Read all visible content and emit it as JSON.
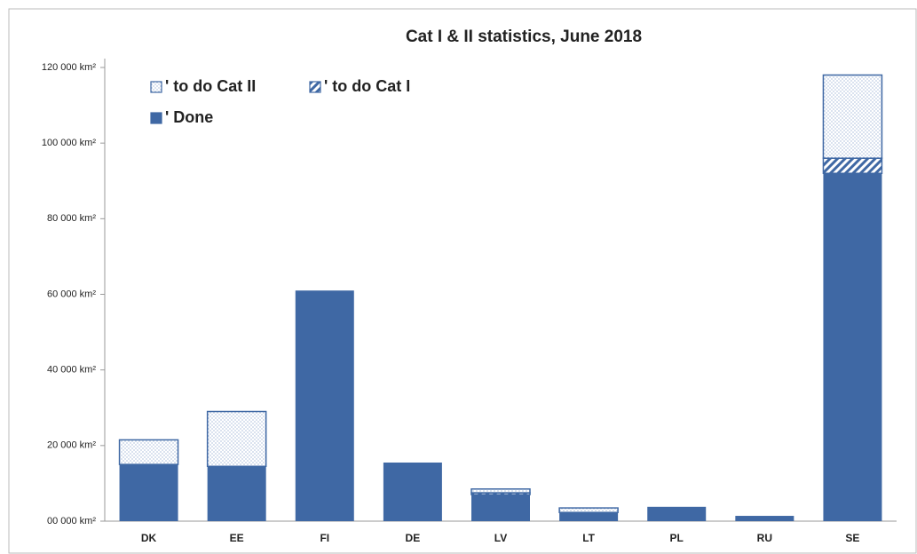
{
  "chart_data": {
    "type": "stacked_bar",
    "title": "Cat I & II statistics, June 2018",
    "categories": [
      "DK",
      "EE",
      "FI",
      "DE",
      "LV",
      "LT",
      "PL",
      "RU",
      "SE"
    ],
    "series": [
      {
        "name": "' Done",
        "color": "#3f68a4",
        "pattern": "solid",
        "values": [
          15000,
          14500,
          61000,
          15500,
          7000,
          2300,
          3800,
          1400,
          92000
        ]
      },
      {
        "name": "' to do Cat I",
        "color": "#3f68a4",
        "pattern": "hatch",
        "values": [
          0,
          0,
          0,
          0,
          500,
          0,
          0,
          0,
          4000
        ]
      },
      {
        "name": "' to do Cat II",
        "color": "#3f68a4",
        "pattern": "dots",
        "values": [
          6500,
          14500,
          0,
          0,
          1000,
          1200,
          0,
          0,
          22000
        ]
      }
    ],
    "ylim": [
      0,
      120000
    ],
    "yticks": [
      {
        "value": 0,
        "label": "00 000  km²"
      },
      {
        "value": 20000,
        "label": "20 000  km²"
      },
      {
        "value": 40000,
        "label": "40 000  km²"
      },
      {
        "value": 60000,
        "label": "60 000  km²"
      },
      {
        "value": 80000,
        "label": "80 000  km²"
      },
      {
        "value": 100000,
        "label": "100 000  km²"
      },
      {
        "value": 120000,
        "label": "120 000  km²"
      }
    ],
    "grid": false
  }
}
